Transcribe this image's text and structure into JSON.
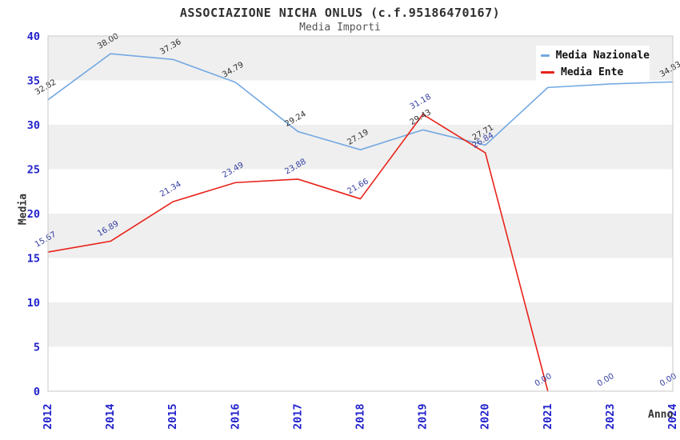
{
  "header": {
    "title": "ASSOCIAZIONE NICHA ONLUS (c.f.95186470167)",
    "subtitle": "Media Importi"
  },
  "legend": {
    "items": [
      {
        "label": "Media Nazionale",
        "color": "#74A9E2"
      },
      {
        "label": "Media Ente",
        "color": "#E8221A"
      }
    ]
  },
  "axes": {
    "x_title": "Anno",
    "y_title": "Media"
  },
  "chart_data": {
    "type": "line",
    "categories": [
      "2012",
      "2014",
      "2015",
      "2016",
      "2017",
      "2018",
      "2019",
      "2020",
      "2021",
      "2023",
      "2024"
    ],
    "series": [
      {
        "name": "Media Nazionale",
        "color": "#74A9E2",
        "label_color": "#2F2F2F",
        "values": [
          32.82,
          38.0,
          37.36,
          34.79,
          29.24,
          27.19,
          29.43,
          27.71,
          34.2,
          34.6,
          34.83
        ],
        "labels": [
          "32.82",
          "38.00",
          "37.36",
          "34.79",
          "29.24",
          "27.19",
          "29.43",
          "27.71",
          "",
          "",
          "34.83"
        ]
      },
      {
        "name": "Media Ente",
        "color": "#E8221A",
        "label_color": "#333DA0",
        "values": [
          15.67,
          16.89,
          21.34,
          23.49,
          23.88,
          21.66,
          31.18,
          26.84,
          0,
          0,
          0
        ],
        "labels": [
          "15.67",
          "16.89",
          "21.34",
          "23.49",
          "23.88",
          "21.66",
          "31.18",
          "26.84",
          "0.00",
          "0.00",
          "0.00"
        ]
      }
    ],
    "title": "ASSOCIAZIONE NICHA ONLUS (c.f.95186470167)",
    "subtitle": "Media Importi",
    "xlabel": "Anno",
    "ylabel": "Media",
    "ylim": [
      0,
      40
    ],
    "yticks": [
      0,
      5,
      10,
      15,
      20,
      25,
      30,
      35,
      40
    ],
    "grid": "alternating-horizontal-bands",
    "legend_position": "top-right"
  },
  "colors": {
    "band_gray": "#EFEFEF",
    "band_white": "#FFFFFF",
    "plot_border": "#C9C9C9",
    "tick_label": "#2222CC",
    "axis_title": "#333333",
    "title": "#2F2F2F",
    "subtitle": "#555555"
  }
}
